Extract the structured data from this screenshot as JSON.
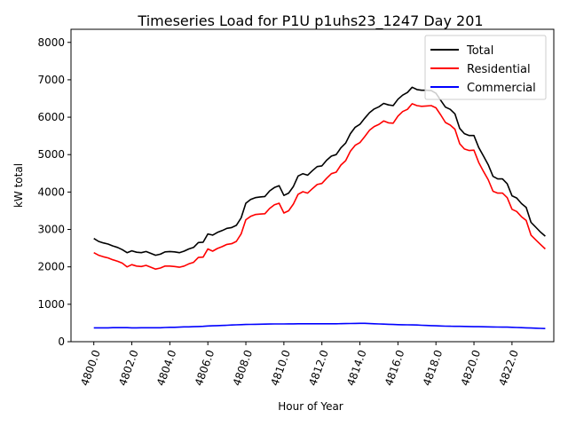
{
  "chart_data": {
    "type": "line",
    "title": "Timeseries Load for P1U p1uhs23_1247  Day 201",
    "xlabel": "Hour of Year",
    "ylabel": "kW total",
    "xlim": [
      4798.8,
      4824.2
    ],
    "ylim": [
      0,
      8350
    ],
    "xticks": [
      4800,
      4802,
      4804,
      4806,
      4808,
      4810,
      4812,
      4814,
      4816,
      4818,
      4820,
      4822
    ],
    "xtick_labels": [
      "4800.0",
      "4802.0",
      "4804.0",
      "4806.0",
      "4808.0",
      "4810.0",
      "4812.0",
      "4814.0",
      "4816.0",
      "4818.0",
      "4820.0",
      "4822.0"
    ],
    "yticks": [
      0,
      1000,
      2000,
      3000,
      4000,
      5000,
      6000,
      7000,
      8000
    ],
    "ytick_labels": [
      "0",
      "1000",
      "2000",
      "3000",
      "4000",
      "5000",
      "6000",
      "7000",
      "8000"
    ],
    "legend_position": "top-right",
    "x_start": 4800.0,
    "x_step": 0.25,
    "series": [
      {
        "name": "Total",
        "color": "#000000",
        "values": [
          2760,
          2680,
          2640,
          2610,
          2560,
          2520,
          2460,
          2380,
          2430,
          2390,
          2380,
          2410,
          2360,
          2310,
          2340,
          2400,
          2410,
          2400,
          2380,
          2420,
          2480,
          2520,
          2650,
          2660,
          2880,
          2850,
          2920,
          2970,
          3030,
          3050,
          3110,
          3310,
          3700,
          3800,
          3850,
          3870,
          3880,
          4030,
          4120,
          4170,
          3910,
          3970,
          4150,
          4430,
          4490,
          4450,
          4570,
          4680,
          4700,
          4850,
          4960,
          5000,
          5180,
          5310,
          5560,
          5730,
          5810,
          5970,
          6120,
          6220,
          6280,
          6370,
          6330,
          6310,
          6480,
          6590,
          6660,
          6800,
          6740,
          6720,
          6720,
          6710,
          6640,
          6450,
          6270,
          6210,
          6090,
          5700,
          5560,
          5510,
          5510,
          5190,
          4960,
          4730,
          4420,
          4350,
          4350,
          4220,
          3900,
          3840,
          3690,
          3590,
          3190,
          3060,
          2930,
          2820
        ]
      },
      {
        "name": "Residential",
        "color": "#ff0000",
        "values": [
          2380,
          2310,
          2270,
          2240,
          2190,
          2150,
          2100,
          2000,
          2060,
          2020,
          2010,
          2040,
          1990,
          1940,
          1970,
          2020,
          2020,
          2010,
          1990,
          2020,
          2080,
          2120,
          2250,
          2260,
          2480,
          2420,
          2490,
          2540,
          2600,
          2620,
          2680,
          2880,
          3260,
          3350,
          3400,
          3410,
          3420,
          3560,
          3660,
          3700,
          3440,
          3500,
          3680,
          3940,
          4010,
          3970,
          4090,
          4200,
          4230,
          4370,
          4490,
          4530,
          4720,
          4840,
          5090,
          5250,
          5320,
          5480,
          5650,
          5750,
          5810,
          5900,
          5850,
          5840,
          6030,
          6150,
          6210,
          6360,
          6310,
          6290,
          6300,
          6310,
          6250,
          6060,
          5860,
          5790,
          5680,
          5290,
          5150,
          5110,
          5120,
          4790,
          4550,
          4330,
          4020,
          3970,
          3970,
          3850,
          3540,
          3480,
          3340,
          3240,
          2850,
          2720,
          2600,
          2480
        ]
      },
      {
        "name": "Commercial",
        "color": "#0000ff",
        "values": [
          370,
          370,
          370,
          370,
          375,
          375,
          375,
          375,
          370,
          370,
          372,
          372,
          372,
          372,
          372,
          380,
          385,
          385,
          390,
          395,
          395,
          400,
          405,
          410,
          420,
          425,
          430,
          435,
          440,
          445,
          450,
          455,
          460,
          462,
          465,
          468,
          470,
          472,
          474,
          475,
          475,
          476,
          477,
          478,
          478,
          478,
          478,
          478,
          478,
          478,
          479,
          480,
          482,
          484,
          486,
          488,
          490,
          490,
          485,
          480,
          475,
          470,
          465,
          460,
          455,
          452,
          450,
          448,
          445,
          440,
          435,
          430,
          425,
          420,
          415,
          412,
          410,
          410,
          408,
          405,
          402,
          400,
          398,
          396,
          394,
          392,
          390,
          388,
          385,
          380,
          375,
          370,
          365,
          360,
          355,
          350
        ]
      }
    ]
  }
}
